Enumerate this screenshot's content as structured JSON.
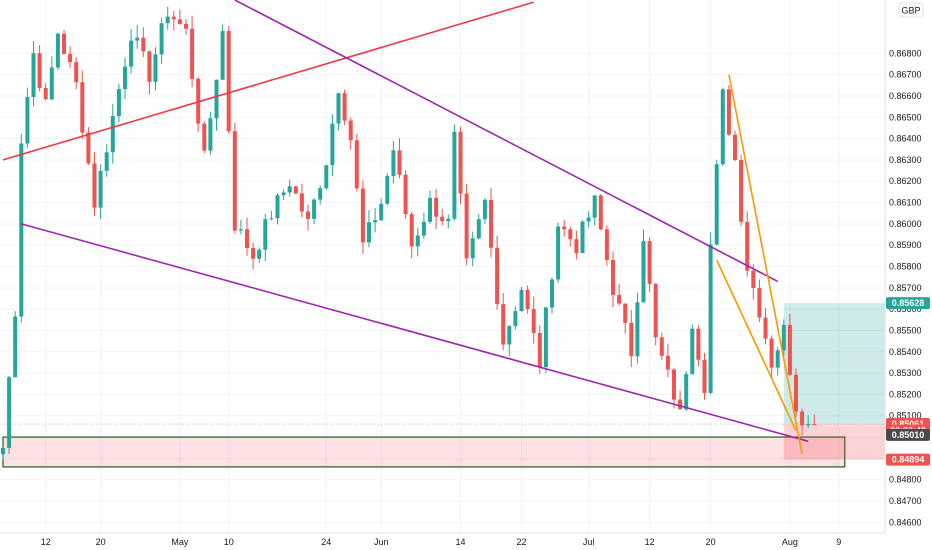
{
  "chart_data": {
    "type": "candlestick",
    "currency_label": "GBP",
    "ylim": [
      0.8455,
      0.8705
    ],
    "y_ticks": [
      "0.86800",
      "0.86700",
      "0.86600",
      "0.86500",
      "0.86400",
      "0.86300",
      "0.86200",
      "0.86100",
      "0.86000",
      "0.85900",
      "0.85800",
      "0.85700",
      "0.85600",
      "0.85500",
      "0.85400",
      "0.85300",
      "0.85200",
      "0.85100",
      "0.85000",
      "0.84900",
      "0.84800",
      "0.84700",
      "0.84600"
    ],
    "y_tick_values": [
      0.868,
      0.867,
      0.866,
      0.865,
      0.864,
      0.863,
      0.862,
      0.861,
      0.86,
      0.859,
      0.858,
      0.857,
      0.856,
      0.855,
      0.854,
      0.853,
      0.852,
      0.851,
      0.85,
      0.849,
      0.848,
      0.847,
      0.846
    ],
    "x_ticks": [
      {
        "label": "12",
        "bar": 7
      },
      {
        "label": "20",
        "bar": 16
      },
      {
        "label": "May",
        "bar": 29
      },
      {
        "label": "10",
        "bar": 37
      },
      {
        "label": "24",
        "bar": 53
      },
      {
        "label": "Jun",
        "bar": 62
      },
      {
        "label": "14",
        "bar": 75
      },
      {
        "label": "22",
        "bar": 85
      },
      {
        "label": "Jul",
        "bar": 96
      },
      {
        "label": "12",
        "bar": 106
      },
      {
        "label": "20",
        "bar": 116
      },
      {
        "label": "Aug",
        "bar": 129
      },
      {
        "label": "9",
        "bar": 137
      }
    ],
    "total_bars": 148,
    "price_tags": [
      {
        "label": "0.85628",
        "value": 0.85628,
        "color": "#26a69a"
      },
      {
        "label": "0.85061",
        "value": 0.85061,
        "color": "#ef5350"
      },
      {
        "label": "02:36:40",
        "value": 0.8503,
        "color": "#ef5350"
      },
      {
        "label": "0.85010",
        "value": 0.8501,
        "color": "#4a4a4a"
      },
      {
        "label": "0.84894",
        "value": 0.84894,
        "color": "#ef5350"
      }
    ],
    "last_price_line": 0.85061,
    "keypoints": [
      {
        "bar": 0,
        "price": 0.8495
      },
      {
        "bar": 2,
        "price": 0.856
      },
      {
        "bar": 3,
        "price": 0.864
      },
      {
        "bar": 5,
        "price": 0.868
      },
      {
        "bar": 7,
        "price": 0.8655
      },
      {
        "bar": 9,
        "price": 0.869
      },
      {
        "bar": 12,
        "price": 0.8665
      },
      {
        "bar": 15,
        "price": 0.861
      },
      {
        "bar": 18,
        "price": 0.865
      },
      {
        "bar": 21,
        "price": 0.869
      },
      {
        "bar": 24,
        "price": 0.867
      },
      {
        "bar": 27,
        "price": 0.87
      },
      {
        "bar": 30,
        "price": 0.869
      },
      {
        "bar": 33,
        "price": 0.863
      },
      {
        "bar": 36,
        "price": 0.869
      },
      {
        "bar": 38,
        "price": 0.86
      },
      {
        "bar": 41,
        "price": 0.8585
      },
      {
        "bar": 44,
        "price": 0.8605
      },
      {
        "bar": 47,
        "price": 0.862
      },
      {
        "bar": 50,
        "price": 0.86
      },
      {
        "bar": 53,
        "price": 0.863
      },
      {
        "bar": 55,
        "price": 0.8665
      },
      {
        "bar": 57,
        "price": 0.864
      },
      {
        "bar": 59,
        "price": 0.859
      },
      {
        "bar": 62,
        "price": 0.861
      },
      {
        "bar": 64,
        "price": 0.8635
      },
      {
        "bar": 67,
        "price": 0.859
      },
      {
        "bar": 70,
        "price": 0.861
      },
      {
        "bar": 73,
        "price": 0.86
      },
      {
        "bar": 74,
        "price": 0.864
      },
      {
        "bar": 76,
        "price": 0.858
      },
      {
        "bar": 79,
        "price": 0.861
      },
      {
        "bar": 82,
        "price": 0.8545
      },
      {
        "bar": 85,
        "price": 0.857
      },
      {
        "bar": 88,
        "price": 0.8535
      },
      {
        "bar": 91,
        "price": 0.86
      },
      {
        "bar": 94,
        "price": 0.859
      },
      {
        "bar": 97,
        "price": 0.861
      },
      {
        "bar": 100,
        "price": 0.857
      },
      {
        "bar": 103,
        "price": 0.854
      },
      {
        "bar": 105,
        "price": 0.8595
      },
      {
        "bar": 107,
        "price": 0.8545
      },
      {
        "bar": 110,
        "price": 0.852
      },
      {
        "bar": 111,
        "price": 0.851
      },
      {
        "bar": 113,
        "price": 0.8555
      },
      {
        "bar": 115,
        "price": 0.8525
      },
      {
        "bar": 116,
        "price": 0.859
      },
      {
        "bar": 118,
        "price": 0.866
      },
      {
        "bar": 120,
        "price": 0.863
      },
      {
        "bar": 122,
        "price": 0.858
      },
      {
        "bar": 124,
        "price": 0.856
      },
      {
        "bar": 126,
        "price": 0.8535
      },
      {
        "bar": 128,
        "price": 0.855
      },
      {
        "bar": 130,
        "price": 0.8515
      },
      {
        "bar": 132,
        "price": 0.8505
      },
      {
        "bar": 133,
        "price": 0.85061
      }
    ],
    "drawings": {
      "red_line": {
        "color": "#f23645",
        "x0": 0,
        "y0": 0.863,
        "x1": 87,
        "y1": 0.8704
      },
      "purple_upper": {
        "color": "#9c27b0",
        "x0": 38,
        "y0": 0.8705,
        "x1": 127,
        "y1": 0.8573
      },
      "purple_lower": {
        "color": "#9c27b0",
        "x0": 3,
        "y0": 0.86,
        "x1": 132,
        "y1": 0.8498
      },
      "orange_line_1": {
        "color": "#ff9800",
        "x0": 119,
        "y0": 0.867,
        "x1": 131,
        "y1": 0.8492
      },
      "orange_line_2": {
        "color": "#ff9800",
        "x0": 117,
        "y0": 0.8583,
        "x1": 130,
        "y1": 0.8503
      },
      "green_box": {
        "border": "#1b5e20",
        "fill": "rgba(242,54,69,0.15)",
        "x0": 0,
        "x1": 138,
        "y_top": 0.85,
        "y_bottom": 0.8486
      },
      "long_position": {
        "target": 0.85628,
        "entry": 0.85061,
        "stop": 0.84894,
        "x0": 128,
        "x1": 145
      }
    }
  }
}
